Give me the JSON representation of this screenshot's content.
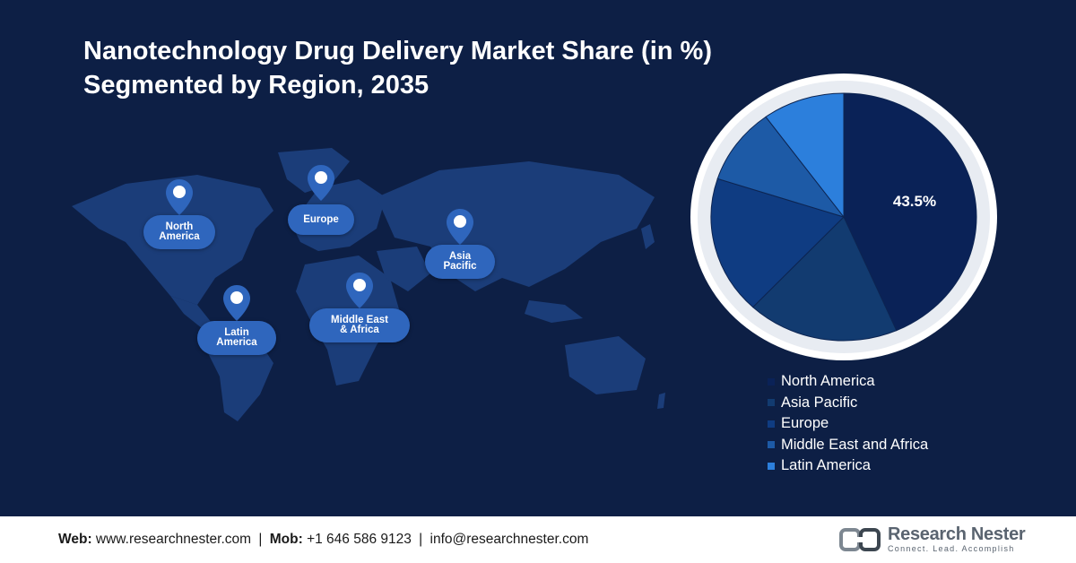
{
  "title": {
    "line1": "Nanotechnology Drug Delivery Market Share (in %)",
    "line2": "Segmented by Region, 2035"
  },
  "map_labels": [
    {
      "id": "north-america",
      "label": "North\nAmerica"
    },
    {
      "id": "europe",
      "label": "Europe"
    },
    {
      "id": "asia-pacific",
      "label": "Asia\nPacific"
    },
    {
      "id": "latin-america",
      "label": "Latin\nAmerica"
    },
    {
      "id": "middle-east-africa",
      "label": "Middle East\n& Africa"
    }
  ],
  "chart_data": {
    "type": "pie",
    "title": "Nanotechnology Drug Delivery Market Share (in %) Segmented by Region, 2035",
    "slices": [
      {
        "name": "North America",
        "value": 43.5,
        "color": "#0a2257",
        "label": "43.5%"
      },
      {
        "name": "Asia Pacific",
        "value": 18.5,
        "color": "#123b70"
      },
      {
        "name": "Europe",
        "value": 18,
        "color": "#0f3c82"
      },
      {
        "name": "Middle East and Africa",
        "value": 10,
        "color": "#1d5aa6"
      },
      {
        "name": "Latin America",
        "value": 10,
        "color": "#2c7fdc"
      }
    ],
    "legend_position": "bottom-right"
  },
  "colors": {
    "background": "#0d1f45",
    "map_land": "#1c3f7c",
    "pill": "#2f66bd"
  },
  "footer": {
    "web_label": "Web:",
    "web_value": "www.researchnester.com",
    "mob_label": "Mob:",
    "mob_value": "+1 646 586 9123",
    "email": "info@researchnester.com",
    "separator": "|",
    "logo_name": "Research Nester",
    "logo_tagline": "Connect. Lead. Accomplish"
  }
}
